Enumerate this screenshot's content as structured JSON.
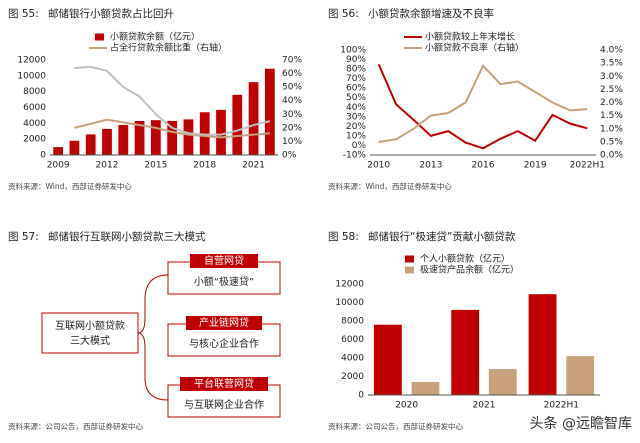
{
  "figures": [
    {
      "label": "图 55:",
      "title": "邮储银行小额贷款占比回升",
      "source": "资料来源：Wind，西部证券研发中心"
    },
    {
      "label": "图 56:",
      "title": "小额贷款余额增速及不良率",
      "source": "资料来源：Wind，西部证券研发中心"
    },
    {
      "label": "图 57:",
      "title": "邮储银行互联网小额贷款三大模式",
      "source": "资料来源：公司公告，西部证券研发中心"
    },
    {
      "label": "图 58:",
      "title": "邮储银行“极速贷”贡献小额贷款",
      "source": "资料来源：公司公告，西部证券研发中心"
    }
  ],
  "diagram": {
    "center": [
      "互联网小额贷款",
      "三大模式"
    ],
    "modes": [
      {
        "name": "自营网贷",
        "desc": "小额“极速贷”"
      },
      {
        "name": "产业链网贷",
        "desc": "与核心企业合作"
      },
      {
        "name": "平台联营网贷",
        "desc": "与互联网企业合作"
      }
    ]
  },
  "watermark": "头条 @远瞻智库",
  "chart_data": [
    {
      "type": "bar",
      "categories": [
        "2009",
        null,
        null,
        "2012",
        null,
        null,
        "2015",
        null,
        null,
        "2018",
        null,
        null,
        "2021",
        null
      ],
      "series": [
        {
          "name": "小额贷款余额（亿元）",
          "type": "bar",
          "color": "#c00000",
          "values": [
            1000,
            1800,
            2600,
            3300,
            3800,
            4300,
            4400,
            4300,
            4500,
            5400,
            5700,
            7600,
            9200,
            10900
          ]
        },
        {
          "name": "占全行贷款余额比重（右轴）",
          "type": "line",
          "axis": "y2",
          "color": "#c8a27a",
          "values": [
            null,
            20,
            23,
            26,
            24,
            22,
            20,
            17,
            15,
            14,
            13,
            14,
            15,
            16
          ]
        },
        {
          "name": null,
          "type": "line",
          "axis": "y2",
          "color": "#c0c0c0",
          "values": [
            null,
            64,
            65,
            62,
            50,
            43,
            30,
            20,
            16,
            15,
            15,
            18,
            22,
            25
          ]
        }
      ],
      "ylim": [
        0,
        12000
      ],
      "yticks": [
        0,
        2000,
        4000,
        6000,
        8000,
        10000,
        12000
      ],
      "y2lim": [
        0,
        70
      ],
      "y2ticks": [
        {
          "value": 0,
          "label": "0%"
        },
        {
          "value": 10,
          "label": "10%"
        },
        {
          "value": 20,
          "label": "20%"
        },
        {
          "value": 30,
          "label": "30%"
        },
        {
          "value": 40,
          "label": "40%"
        },
        {
          "value": 50,
          "label": "50%"
        },
        {
          "value": 60,
          "label": "60%"
        },
        {
          "value": 70,
          "label": "70%"
        }
      ]
    },
    {
      "type": "line",
      "categories": [
        "2010",
        null,
        null,
        "2013",
        null,
        null,
        "2016",
        null,
        null,
        "2019",
        null,
        null,
        "2022H1"
      ],
      "series": [
        {
          "name": "小额贷款较上年末增长",
          "type": "line",
          "color": "#c00000",
          "values": [
            85,
            43,
            27,
            10,
            15,
            3,
            -3,
            7,
            15,
            5,
            32,
            23,
            18
          ]
        },
        {
          "name": "小额贷款不良率（右轴）",
          "type": "line",
          "axis": "y2",
          "color": "#c8a27a",
          "values": [
            0.5,
            0.6,
            1.0,
            1.5,
            1.6,
            2.0,
            3.4,
            2.7,
            2.8,
            2.4,
            2.0,
            1.7,
            1.75
          ]
        }
      ],
      "ylim": [
        -10,
        100
      ],
      "yticks": [
        {
          "value": -10,
          "label": "-10%"
        },
        {
          "value": 0,
          "label": "0%"
        },
        {
          "value": 10,
          "label": "10%"
        },
        {
          "value": 20,
          "label": "20%"
        },
        {
          "value": 30,
          "label": "30%"
        },
        {
          "value": 40,
          "label": "40%"
        },
        {
          "value": 50,
          "label": "50%"
        },
        {
          "value": 60,
          "label": "60%"
        },
        {
          "value": 70,
          "label": "70%"
        },
        {
          "value": 80,
          "label": "80%"
        },
        {
          "value": 90,
          "label": "90%"
        },
        {
          "value": 100,
          "label": "100%"
        }
      ],
      "y2lim": [
        0,
        4
      ],
      "y2ticks": [
        {
          "value": 0,
          "label": "0.0%"
        },
        {
          "value": 0.5,
          "label": "0.5%"
        },
        {
          "value": 1,
          "label": "1.0%"
        },
        {
          "value": 1.5,
          "label": "1.5%"
        },
        {
          "value": 2,
          "label": "2.0%"
        },
        {
          "value": 2.5,
          "label": "2.5%"
        },
        {
          "value": 3,
          "label": "3.0%"
        },
        {
          "value": 3.5,
          "label": "3.5%"
        },
        {
          "value": 4,
          "label": "4.0%"
        }
      ]
    },
    {
      "type": "bar",
      "categories": [
        "2020",
        "2021",
        "2022H1"
      ],
      "series": [
        {
          "name": "个人小额贷款（亿元）",
          "type": "bar",
          "color": "#c00000",
          "values": [
            7600,
            9200,
            10900
          ]
        },
        {
          "name": "极速贷产品余额（亿元）",
          "type": "bar",
          "color": "#c8a27a",
          "values": [
            1400,
            2800,
            4200
          ]
        }
      ],
      "ylim": [
        0,
        12000
      ],
      "yticks": [
        0,
        2000,
        4000,
        6000,
        8000,
        10000,
        12000
      ]
    }
  ]
}
